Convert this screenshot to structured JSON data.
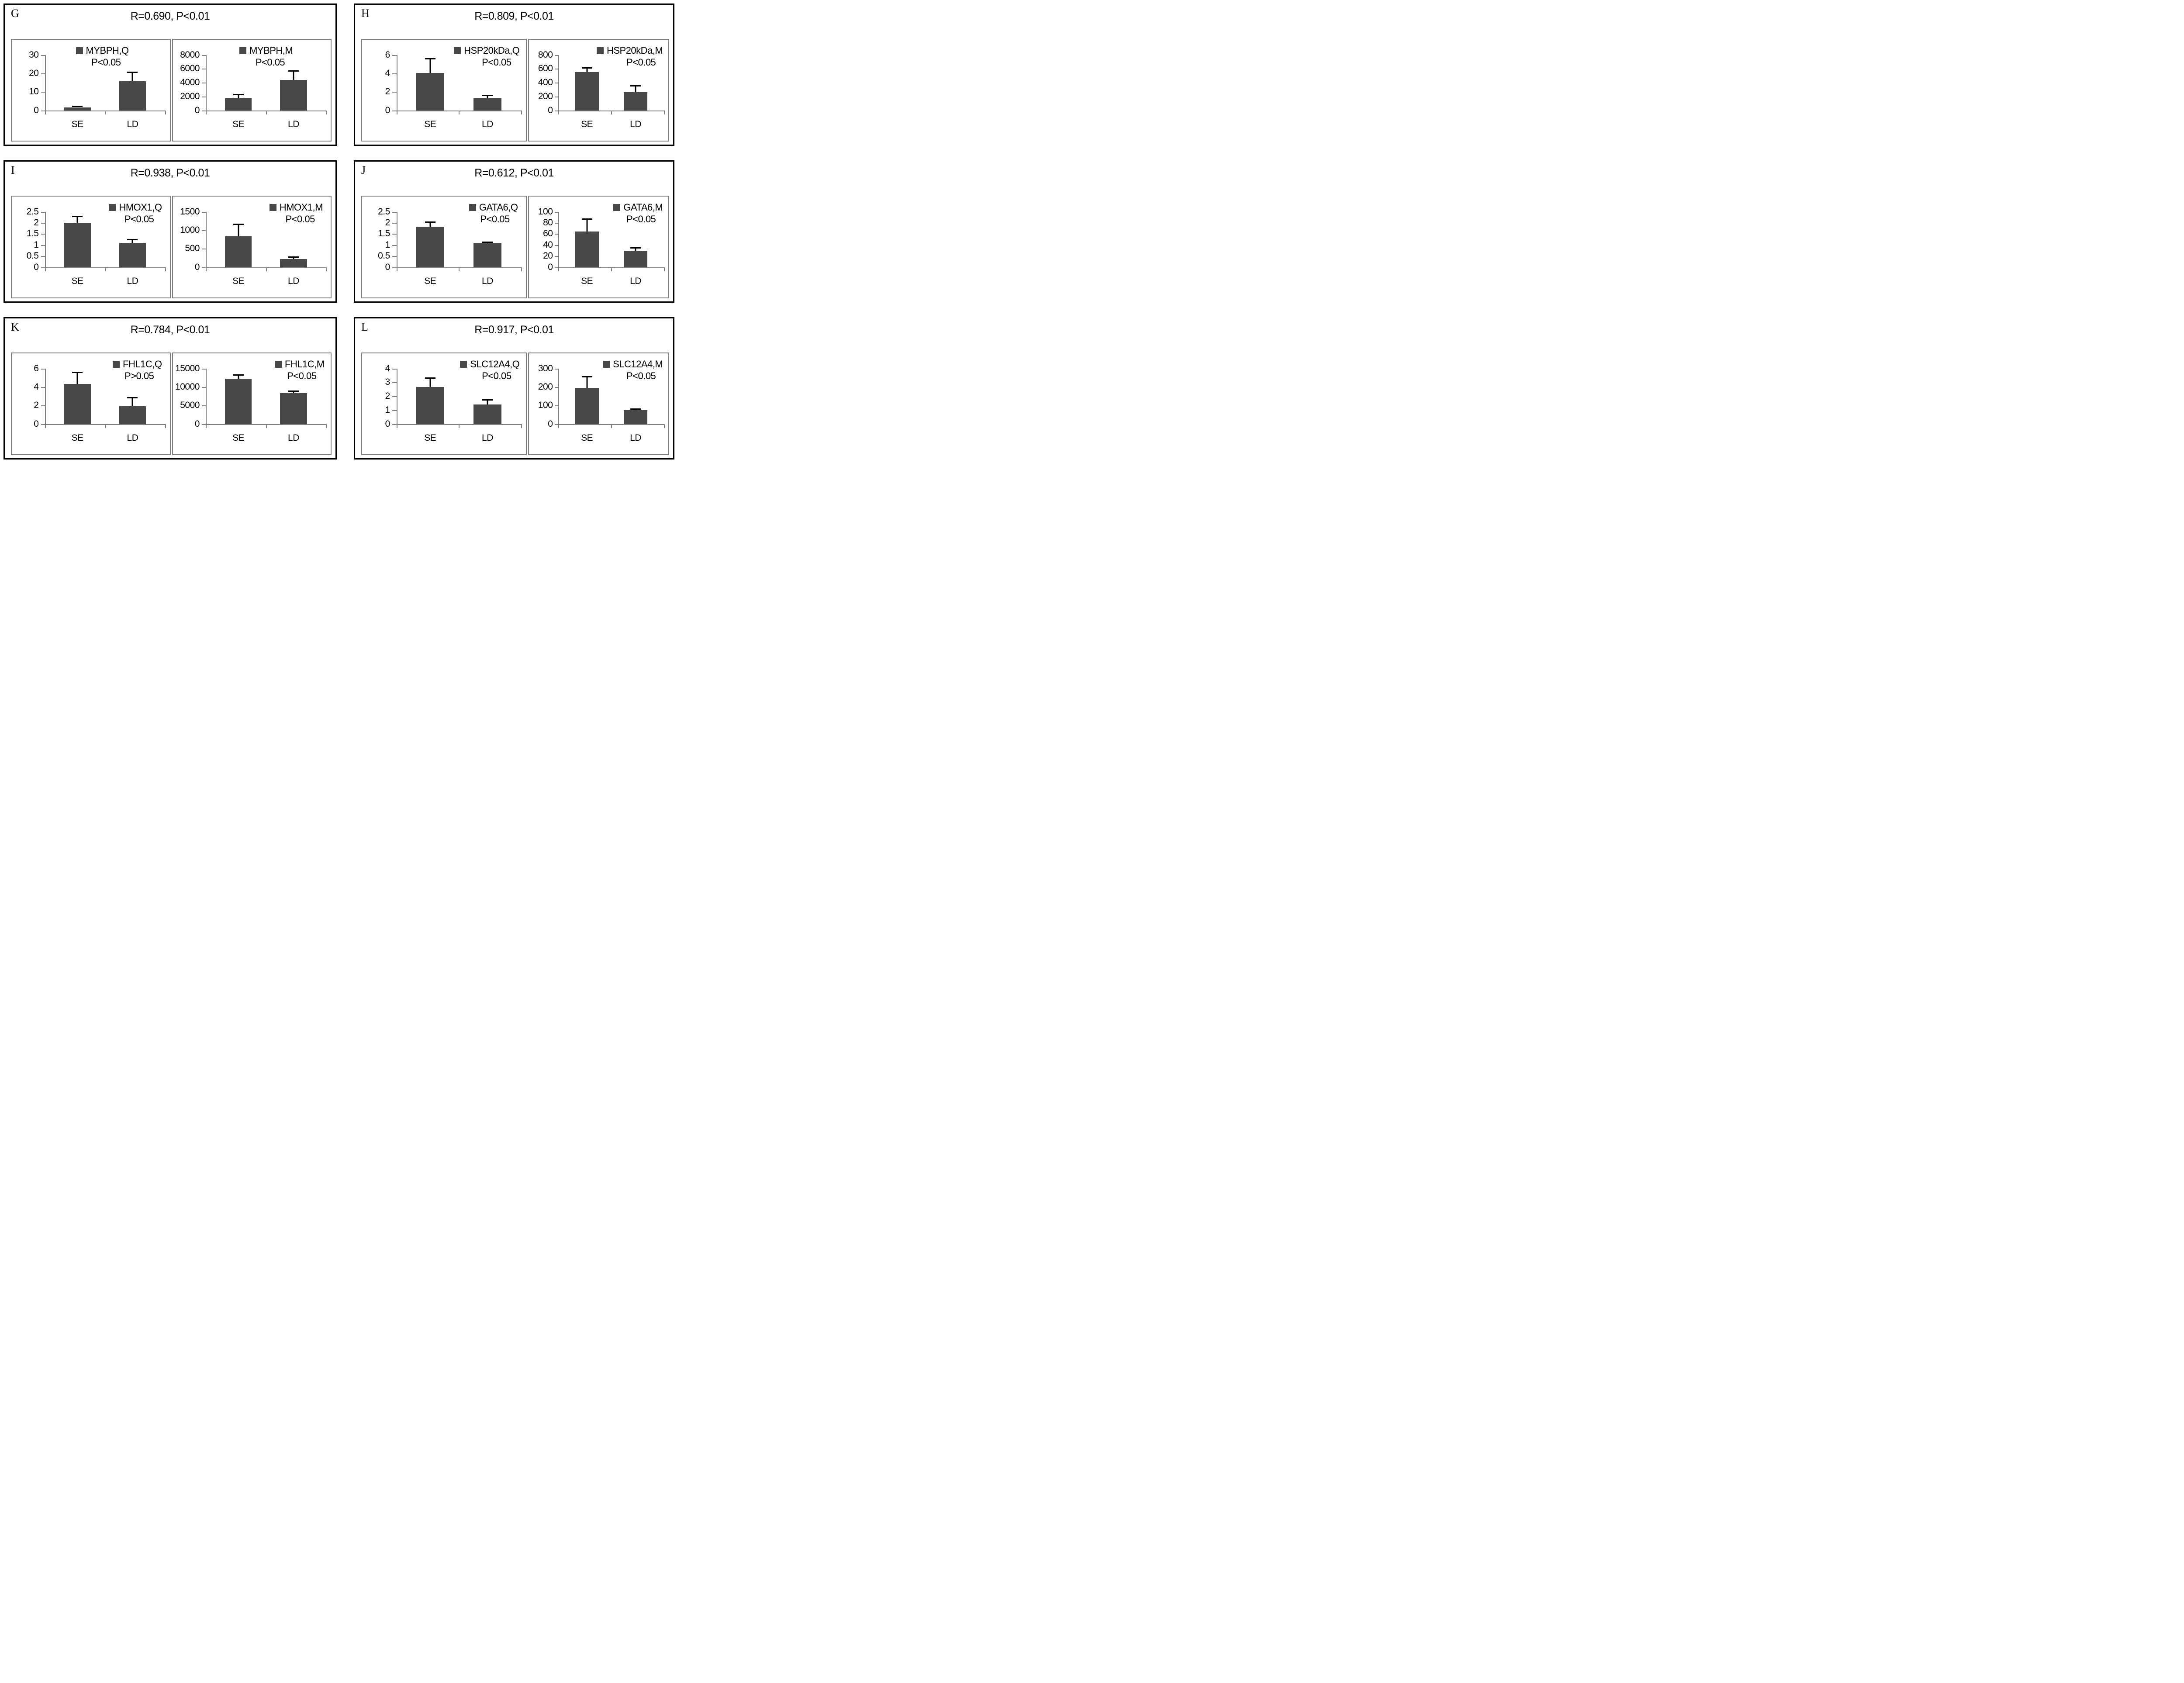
{
  "figure_title": "",
  "colors": {
    "bar": "#484848",
    "panel_border": "#000000",
    "chart_border": "#7f7f7f",
    "error_bar": "#000000",
    "text": "#000000",
    "background": "#ffffff"
  },
  "chart_data": [
    {
      "panel": "G",
      "header": "R=0.690, P<0.01",
      "charts": [
        {
          "type": "bar",
          "legend": "MYBPH,Q",
          "pvalue": "P<0.05",
          "categories": [
            "SE",
            "LD"
          ],
          "values": [
            1.7,
            15.8
          ],
          "error_tops": [
            2.5,
            21.0
          ],
          "ytick_labels": [
            "0",
            "10",
            "20",
            "30"
          ],
          "yticks": [
            0,
            10,
            20,
            30
          ],
          "ylim": [
            0,
            30
          ],
          "legend_right_pct": 26
        },
        {
          "type": "bar",
          "legend": "MYBPH,M",
          "pvalue": "P<0.05",
          "categories": [
            "SE",
            "LD"
          ],
          "values": [
            1750,
            4400
          ],
          "error_tops": [
            2350,
            5800
          ],
          "ytick_labels": [
            "0",
            "2000",
            "4000",
            "6000",
            "8000"
          ],
          "yticks": [
            0,
            2000,
            4000,
            6000,
            8000
          ],
          "ylim": [
            0,
            8000
          ],
          "legend_right_pct": 24
        }
      ]
    },
    {
      "panel": "H",
      "header": "R=0.809, P<0.01",
      "charts": [
        {
          "type": "bar",
          "legend": "HSP20kDa,Q",
          "pvalue": "P<0.05",
          "categories": [
            "SE",
            "LD"
          ],
          "values": [
            4.05,
            1.3
          ],
          "error_tops": [
            5.65,
            1.68
          ],
          "ytick_labels": [
            "0",
            "2",
            "4",
            "6"
          ],
          "yticks": [
            0,
            2,
            4,
            6
          ],
          "ylim": [
            0,
            6
          ],
          "legend_right_pct": 4
        },
        {
          "type": "bar",
          "legend": "HSP20kDa,M",
          "pvalue": "P<0.05",
          "categories": [
            "SE",
            "LD"
          ],
          "values": [
            550,
            260
          ],
          "error_tops": [
            620,
            365
          ],
          "ytick_labels": [
            "0",
            "200",
            "400",
            "600",
            "800"
          ],
          "yticks": [
            0,
            200,
            400,
            600,
            800
          ],
          "ylim": [
            0,
            800
          ],
          "legend_right_pct": 4
        }
      ]
    },
    {
      "panel": "I",
      "header": "R=0.938, P<0.01",
      "charts": [
        {
          "type": "bar",
          "legend": "HMOX1,Q",
          "pvalue": "P<0.05",
          "categories": [
            "SE",
            "LD"
          ],
          "values": [
            2.0,
            1.1
          ],
          "error_tops": [
            2.32,
            1.27
          ],
          "ytick_labels": [
            "0",
            "0.5",
            "1",
            "1.5",
            "2",
            "2.5"
          ],
          "yticks": [
            0,
            0.5,
            1,
            1.5,
            2,
            2.5
          ],
          "ylim": [
            0,
            2.5
          ],
          "legend_right_pct": 5
        },
        {
          "type": "bar",
          "legend": "HMOX1,M",
          "pvalue": "P<0.05",
          "categories": [
            "SE",
            "LD"
          ],
          "values": [
            830,
            215
          ],
          "error_tops": [
            1180,
            290
          ],
          "ytick_labels": [
            "0",
            "500",
            "1000",
            "1500"
          ],
          "yticks": [
            0,
            500,
            1000,
            1500
          ],
          "ylim": [
            0,
            1500
          ],
          "legend_right_pct": 5
        }
      ]
    },
    {
      "panel": "J",
      "header": "R=0.612, P<0.01",
      "charts": [
        {
          "type": "bar",
          "legend": "GATA6,Q",
          "pvalue": "P<0.05",
          "categories": [
            "SE",
            "LD"
          ],
          "values": [
            1.82,
            1.07
          ],
          "error_tops": [
            2.06,
            1.15
          ],
          "ytick_labels": [
            "0",
            "0.5",
            "1",
            "1.5",
            "2",
            "2.5"
          ],
          "yticks": [
            0,
            0.5,
            1,
            1.5,
            2,
            2.5
          ],
          "ylim": [
            0,
            2.5
          ],
          "legend_right_pct": 5
        },
        {
          "type": "bar",
          "legend": "GATA6,M",
          "pvalue": "P<0.05",
          "categories": [
            "SE",
            "LD"
          ],
          "values": [
            64,
            30
          ],
          "error_tops": [
            88,
            36
          ],
          "ytick_labels": [
            "0",
            "20",
            "40",
            "60",
            "80",
            "100"
          ],
          "yticks": [
            0,
            20,
            40,
            60,
            80,
            100
          ],
          "ylim": [
            0,
            100
          ],
          "legend_right_pct": 4
        }
      ]
    },
    {
      "panel": "K",
      "header": "R=0.784, P<0.01",
      "charts": [
        {
          "type": "bar",
          "legend": "FHL1C,Q",
          "pvalue": "P>0.05",
          "categories": [
            "SE",
            "LD"
          ],
          "values": [
            4.35,
            1.9
          ],
          "error_tops": [
            5.65,
            2.9
          ],
          "ytick_labels": [
            "0",
            "2",
            "4",
            "6"
          ],
          "yticks": [
            0,
            2,
            4,
            6
          ],
          "ylim": [
            0,
            6
          ],
          "legend_right_pct": 5
        },
        {
          "type": "bar",
          "legend": "FHL1C,M",
          "pvalue": "P<0.05",
          "categories": [
            "SE",
            "LD"
          ],
          "values": [
            12300,
            8400
          ],
          "error_tops": [
            13400,
            9000
          ],
          "ytick_labels": [
            "0",
            "5000",
            "10000",
            "15000"
          ],
          "yticks": [
            0,
            5000,
            10000,
            15000
          ],
          "ylim": [
            0,
            15000
          ],
          "legend_right_pct": 4
        }
      ]
    },
    {
      "panel": "L",
      "header": "R=0.917, P<0.01",
      "charts": [
        {
          "type": "bar",
          "legend": "SLC12A4,Q",
          "pvalue": "P<0.05",
          "categories": [
            "SE",
            "LD"
          ],
          "values": [
            2.68,
            1.42
          ],
          "error_tops": [
            3.35,
            1.78
          ],
          "ytick_labels": [
            "0",
            "1",
            "2",
            "3",
            "4"
          ],
          "yticks": [
            0,
            1,
            2,
            3,
            4
          ],
          "ylim": [
            0,
            4
          ],
          "legend_right_pct": 4
        },
        {
          "type": "bar",
          "legend": "SLC12A4,M",
          "pvalue": "P<0.05",
          "categories": [
            "SE",
            "LD"
          ],
          "values": [
            195,
            75
          ],
          "error_tops": [
            258,
            85
          ],
          "ytick_labels": [
            "0",
            "100",
            "200",
            "300"
          ],
          "yticks": [
            0,
            100,
            200,
            300
          ],
          "ylim": [
            0,
            300
          ],
          "legend_right_pct": 4
        }
      ]
    }
  ]
}
